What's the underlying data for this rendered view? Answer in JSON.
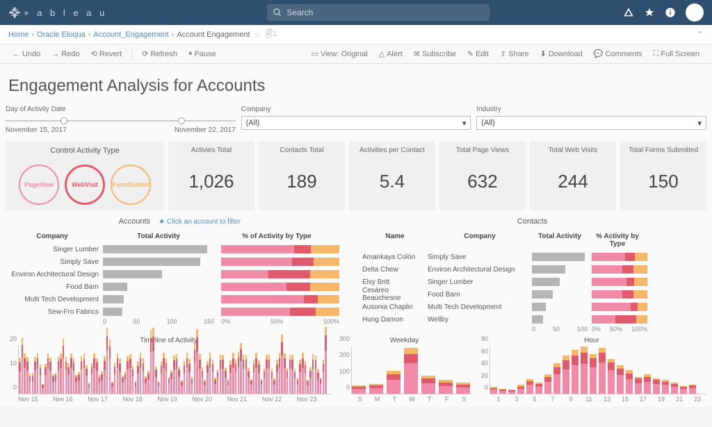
{
  "colors": {
    "topbar": "#2f4f6f",
    "pink": "#f08aa6",
    "orange": "#f5b86b",
    "red": "#e05a6b",
    "gray": "#b5b5b5",
    "blue_link": "#4b8bbe"
  },
  "search": {
    "placeholder": "Search"
  },
  "breadcrumb": {
    "items": [
      "Home",
      "Oracle Eloqua",
      "Account_Engagement",
      "Account Engagement"
    ],
    "views": "1"
  },
  "toolbar": {
    "undo": "Undo",
    "redo": "Redo",
    "revert": "Revert",
    "refresh": "Refresh",
    "pause": "Pause",
    "view": "View: Original",
    "alert": "Alert",
    "subscribe": "Subscribe",
    "edit": "Edit",
    "share": "Share",
    "download": "Download",
    "comments": "Comments",
    "fullscreen": "Full Screen"
  },
  "page_title": "Engagement Analysis for Accounts",
  "filters": {
    "date_label": "Day of Activity Date",
    "date_start": "November 15, 2017",
    "date_end": "November 22, 2017",
    "company_label": "Company",
    "company_value": "(All)",
    "industry_label": "Industry",
    "industry_value": "(All)"
  },
  "activity_types": {
    "title": "Control Activity Type",
    "items": [
      {
        "label": "PageView",
        "color": "#f08aa6"
      },
      {
        "label": "WebVisit",
        "color": "#e05a6b"
      },
      {
        "label": "FormSubmit",
        "color": "#f5b86b"
      }
    ]
  },
  "kpis": [
    {
      "label": "Activies Total",
      "value": "1,026"
    },
    {
      "label": "Contacts Total",
      "value": "189"
    },
    {
      "label": "Activities per Contact",
      "value": "5.4"
    },
    {
      "label": "Total Page Views",
      "value": "632"
    },
    {
      "label": "Total Web Visits",
      "value": "244"
    },
    {
      "label": "Total Forms Submitted",
      "value": "150"
    }
  ],
  "accounts": {
    "title": "Accounts",
    "hint": "Click an account to filter",
    "cols": [
      "Company",
      "Total Activity",
      "% of Activity by Type"
    ],
    "rows": [
      {
        "company": "Singer Lumber",
        "total": 150,
        "pct": [
          62,
          14,
          24
        ]
      },
      {
        "company": "Simply Save",
        "total": 140,
        "pct": [
          60,
          18,
          22
        ]
      },
      {
        "company": "Environ Architectural Design",
        "total": 85,
        "pct": [
          40,
          35,
          25
        ]
      },
      {
        "company": "Food Barn",
        "total": 35,
        "pct": [
          55,
          20,
          25
        ]
      },
      {
        "company": "Multi Tech Development",
        "total": 30,
        "pct": [
          70,
          12,
          18
        ]
      },
      {
        "company": "Sew-Fro Fabrics",
        "total": 28,
        "pct": [
          58,
          22,
          20
        ]
      }
    ],
    "x_ticks": [
      "0",
      "50",
      "100",
      "150"
    ],
    "pct_ticks": [
      "0%",
      "50%",
      "100%"
    ]
  },
  "contacts": {
    "title": "Contacts",
    "cols": [
      "Name",
      "Company",
      "Total Activity",
      "% Activity by Type"
    ],
    "rows": [
      {
        "name": "Amankaya Colón",
        "company": "Simply Save",
        "total": 95,
        "pct": [
          60,
          18,
          22
        ]
      },
      {
        "name": "Delta Chew",
        "company": "Environ Architectural Design",
        "total": 60,
        "pct": [
          55,
          20,
          25
        ]
      },
      {
        "name": "Elsy Britt",
        "company": "Singer Lumber",
        "total": 50,
        "pct": [
          62,
          14,
          24
        ]
      },
      {
        "name": "Cesáreo Beauchesne",
        "company": "Food Barn",
        "total": 38,
        "pct": [
          55,
          20,
          25
        ]
      },
      {
        "name": "Ausonia Chaplin",
        "company": "Multi Tech Development",
        "total": 25,
        "pct": [
          70,
          12,
          18
        ]
      },
      {
        "name": "Hung Damon",
        "company": "Wellby",
        "total": 20,
        "pct": [
          42,
          38,
          20
        ]
      }
    ],
    "x_ticks": [
      "0",
      "50",
      "100"
    ],
    "pct_ticks": [
      "0%",
      "50%",
      "100%"
    ]
  },
  "timeline": {
    "title": "Timeline of Activity",
    "y_ticks": [
      "0",
      "10",
      "20"
    ],
    "x_labels": [
      "Nov 15",
      "Nov 16",
      "Nov 17",
      "Nov 18",
      "Nov 19",
      "Nov 20",
      "Nov 21",
      "Nov 22",
      "Nov 23"
    ]
  },
  "weekday": {
    "title": "Weekday",
    "y_ticks": [
      "0",
      "100",
      "200",
      "300"
    ],
    "labels": [
      "S",
      "M",
      "T",
      "W",
      "T",
      "F",
      "S"
    ],
    "data": [
      {
        "v": [
          30,
          15,
          10
        ]
      },
      {
        "v": [
          35,
          18,
          12
        ]
      },
      {
        "v": [
          90,
          40,
          20
        ]
      },
      {
        "v": [
          200,
          60,
          40
        ]
      },
      {
        "v": [
          70,
          30,
          18
        ]
      },
      {
        "v": [
          50,
          25,
          15
        ]
      },
      {
        "v": [
          40,
          20,
          12
        ]
      }
    ]
  },
  "hour": {
    "title": "Hour",
    "y_ticks": [
      "0",
      "20",
      "40",
      "60",
      "80"
    ],
    "labels": [
      "1",
      "3",
      "5",
      "7",
      "9",
      "11",
      "13",
      "15",
      "17",
      "19",
      "21",
      "23"
    ],
    "data": [
      {
        "v": [
          8,
          4,
          2
        ]
      },
      {
        "v": [
          6,
          3,
          1
        ]
      },
      {
        "v": [
          5,
          2,
          1
        ]
      },
      {
        "v": [
          10,
          5,
          3
        ]
      },
      {
        "v": [
          18,
          8,
          4
        ]
      },
      {
        "v": [
          14,
          6,
          3
        ]
      },
      {
        "v": [
          25,
          10,
          5
        ]
      },
      {
        "v": [
          40,
          15,
          8
        ]
      },
      {
        "v": [
          50,
          18,
          10
        ]
      },
      {
        "v": [
          58,
          20,
          12
        ]
      },
      {
        "v": [
          62,
          22,
          13
        ]
      },
      {
        "v": [
          55,
          18,
          9
        ]
      },
      {
        "v": [
          65,
          20,
          10
        ]
      },
      {
        "v": [
          48,
          16,
          8
        ]
      },
      {
        "v": [
          38,
          14,
          7
        ]
      },
      {
        "v": [
          30,
          12,
          6
        ]
      },
      {
        "v": [
          22,
          9,
          4
        ]
      },
      {
        "v": [
          25,
          10,
          5
        ]
      },
      {
        "v": [
          20,
          8,
          4
        ]
      },
      {
        "v": [
          18,
          7,
          3
        ]
      },
      {
        "v": [
          14,
          6,
          3
        ]
      },
      {
        "v": [
          10,
          4,
          2
        ]
      },
      {
        "v": [
          12,
          5,
          2
        ]
      }
    ]
  }
}
